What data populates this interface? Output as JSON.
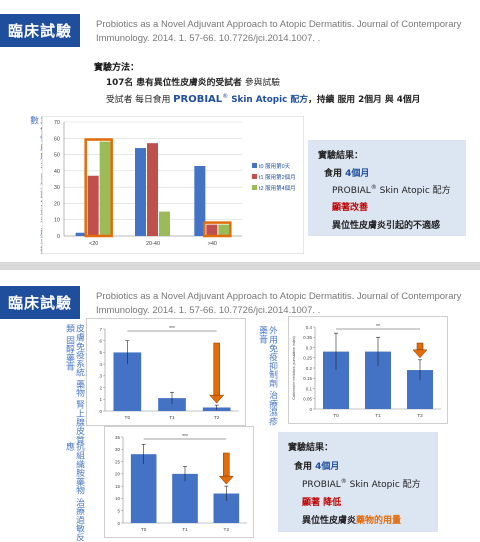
{
  "slide1": {
    "tag": "臨床試驗",
    "citation": "Probiotics as a Novel Adjuvant Approach to Atopic Dermatitis. Journal of Contemporary Immunology. 2014. 1. 57-66. 10.7726/jci.2014.1007. .",
    "method": {
      "title": "實驗方法：",
      "line1": [
        "107名 患有異位性皮膚炎的受試者 ",
        "參與試驗"
      ],
      "line2": [
        "受試者 每日食用 ",
        "PROBIAL",
        "®",
        " Skin Atopic 配方",
        "，持續 服用 2個月 與 4個月"
      ]
    },
    "side_label": "異位性皮膚炎 自覺評分量表 嚴重指數",
    "result": {
      "title": "實驗結果：",
      "line1": [
        "食用 ",
        "4個月"
      ],
      "line2": [
        "PROBIAL",
        "®",
        " Skin Atopic 配方"
      ],
      "line3": "顯著改善",
      "line4": "異位性皮膚炎引起的不適感"
    }
  },
  "slide2": {
    "tag": "臨床試驗",
    "citation": "Probiotics as a Novel Adjuvant Approach to Atopic Dermatitis. Journal of Contemporary Immunology. 2014. 1. 57-66. 10.7726/jci.2014.1007. .",
    "label_a": "皮膚免疫系統 藥物 腎上腺皮質類 固醇藥膏",
    "label_b": "外用免疫抑制劑 治療濕疹 藥膏",
    "label_c": "抗組織胺藥物 治療過敏反應",
    "result": {
      "title": "實驗結果：",
      "line1": [
        "食用 ",
        "4個月"
      ],
      "line2": [
        "PROBIAL",
        "®",
        " Skin Atopic 配方"
      ],
      "line3": "顯著 降低",
      "line4": [
        "異位性皮膚炎",
        "藥物的用量"
      ]
    }
  },
  "colors": {
    "blue_bar": "#4472c4",
    "red_bar": "#c0504d",
    "green_bar": "#9bbb59",
    "orange": "#e26b0a",
    "tag_bg": "#1f4e9c",
    "result_bg": "#dce6f2"
  },
  "chart_data": [
    {
      "type": "bar",
      "categories": [
        "<20",
        "20-40",
        ">40"
      ],
      "series": [
        {
          "name": "服用第0天",
          "values": [
            2,
            54,
            43
          ]
        },
        {
          "name": "服用第2個月",
          "values": [
            37,
            57,
            7
          ]
        },
        {
          "name": "服用第4個月",
          "values": [
            58,
            15,
            7
          ]
        }
      ],
      "legend_prefixes": [
        "t0",
        "t1",
        "t2"
      ],
      "ylim": [
        0,
        70
      ],
      "yticks": [
        0,
        10,
        20,
        30,
        40,
        50,
        60,
        70
      ],
      "grid": true,
      "legend_position": "right",
      "highlight": "<20 and >40 groups boxed in orange"
    },
    {
      "type": "bar",
      "categories": [
        "T0",
        "T1",
        "T2"
      ],
      "values": [
        5.0,
        1.1,
        0.3
      ],
      "errors": [
        1.0,
        0.5,
        0.2
      ],
      "ylim": [
        0,
        7
      ],
      "yticks": [
        0,
        1,
        2,
        3,
        4,
        5,
        6,
        7
      ],
      "significance": "***",
      "arrow_on": "T2"
    },
    {
      "type": "bar",
      "categories": [
        "T0",
        "T1",
        "T2"
      ],
      "values": [
        0.28,
        0.28,
        0.19
      ],
      "errors": [
        0.09,
        0.07,
        0.05
      ],
      "ylim": [
        0,
        0.4
      ],
      "yticks": [
        0,
        0.05,
        0.1,
        0.15,
        0.2,
        0.25,
        0.3,
        0.35,
        0.4
      ],
      "ylabel": "Calcineurin inhibitors (cumulative index)",
      "significance": "**",
      "arrow_on": "T2"
    },
    {
      "type": "bar",
      "categories": [
        "T0",
        "T1",
        "T2"
      ],
      "values": [
        28,
        20,
        12
      ],
      "errors": [
        4,
        3,
        3
      ],
      "ylim": [
        0,
        35
      ],
      "yticks": [
        0,
        5,
        10,
        15,
        20,
        25,
        30,
        35
      ],
      "significance": "***",
      "arrow_on": "T2"
    }
  ]
}
